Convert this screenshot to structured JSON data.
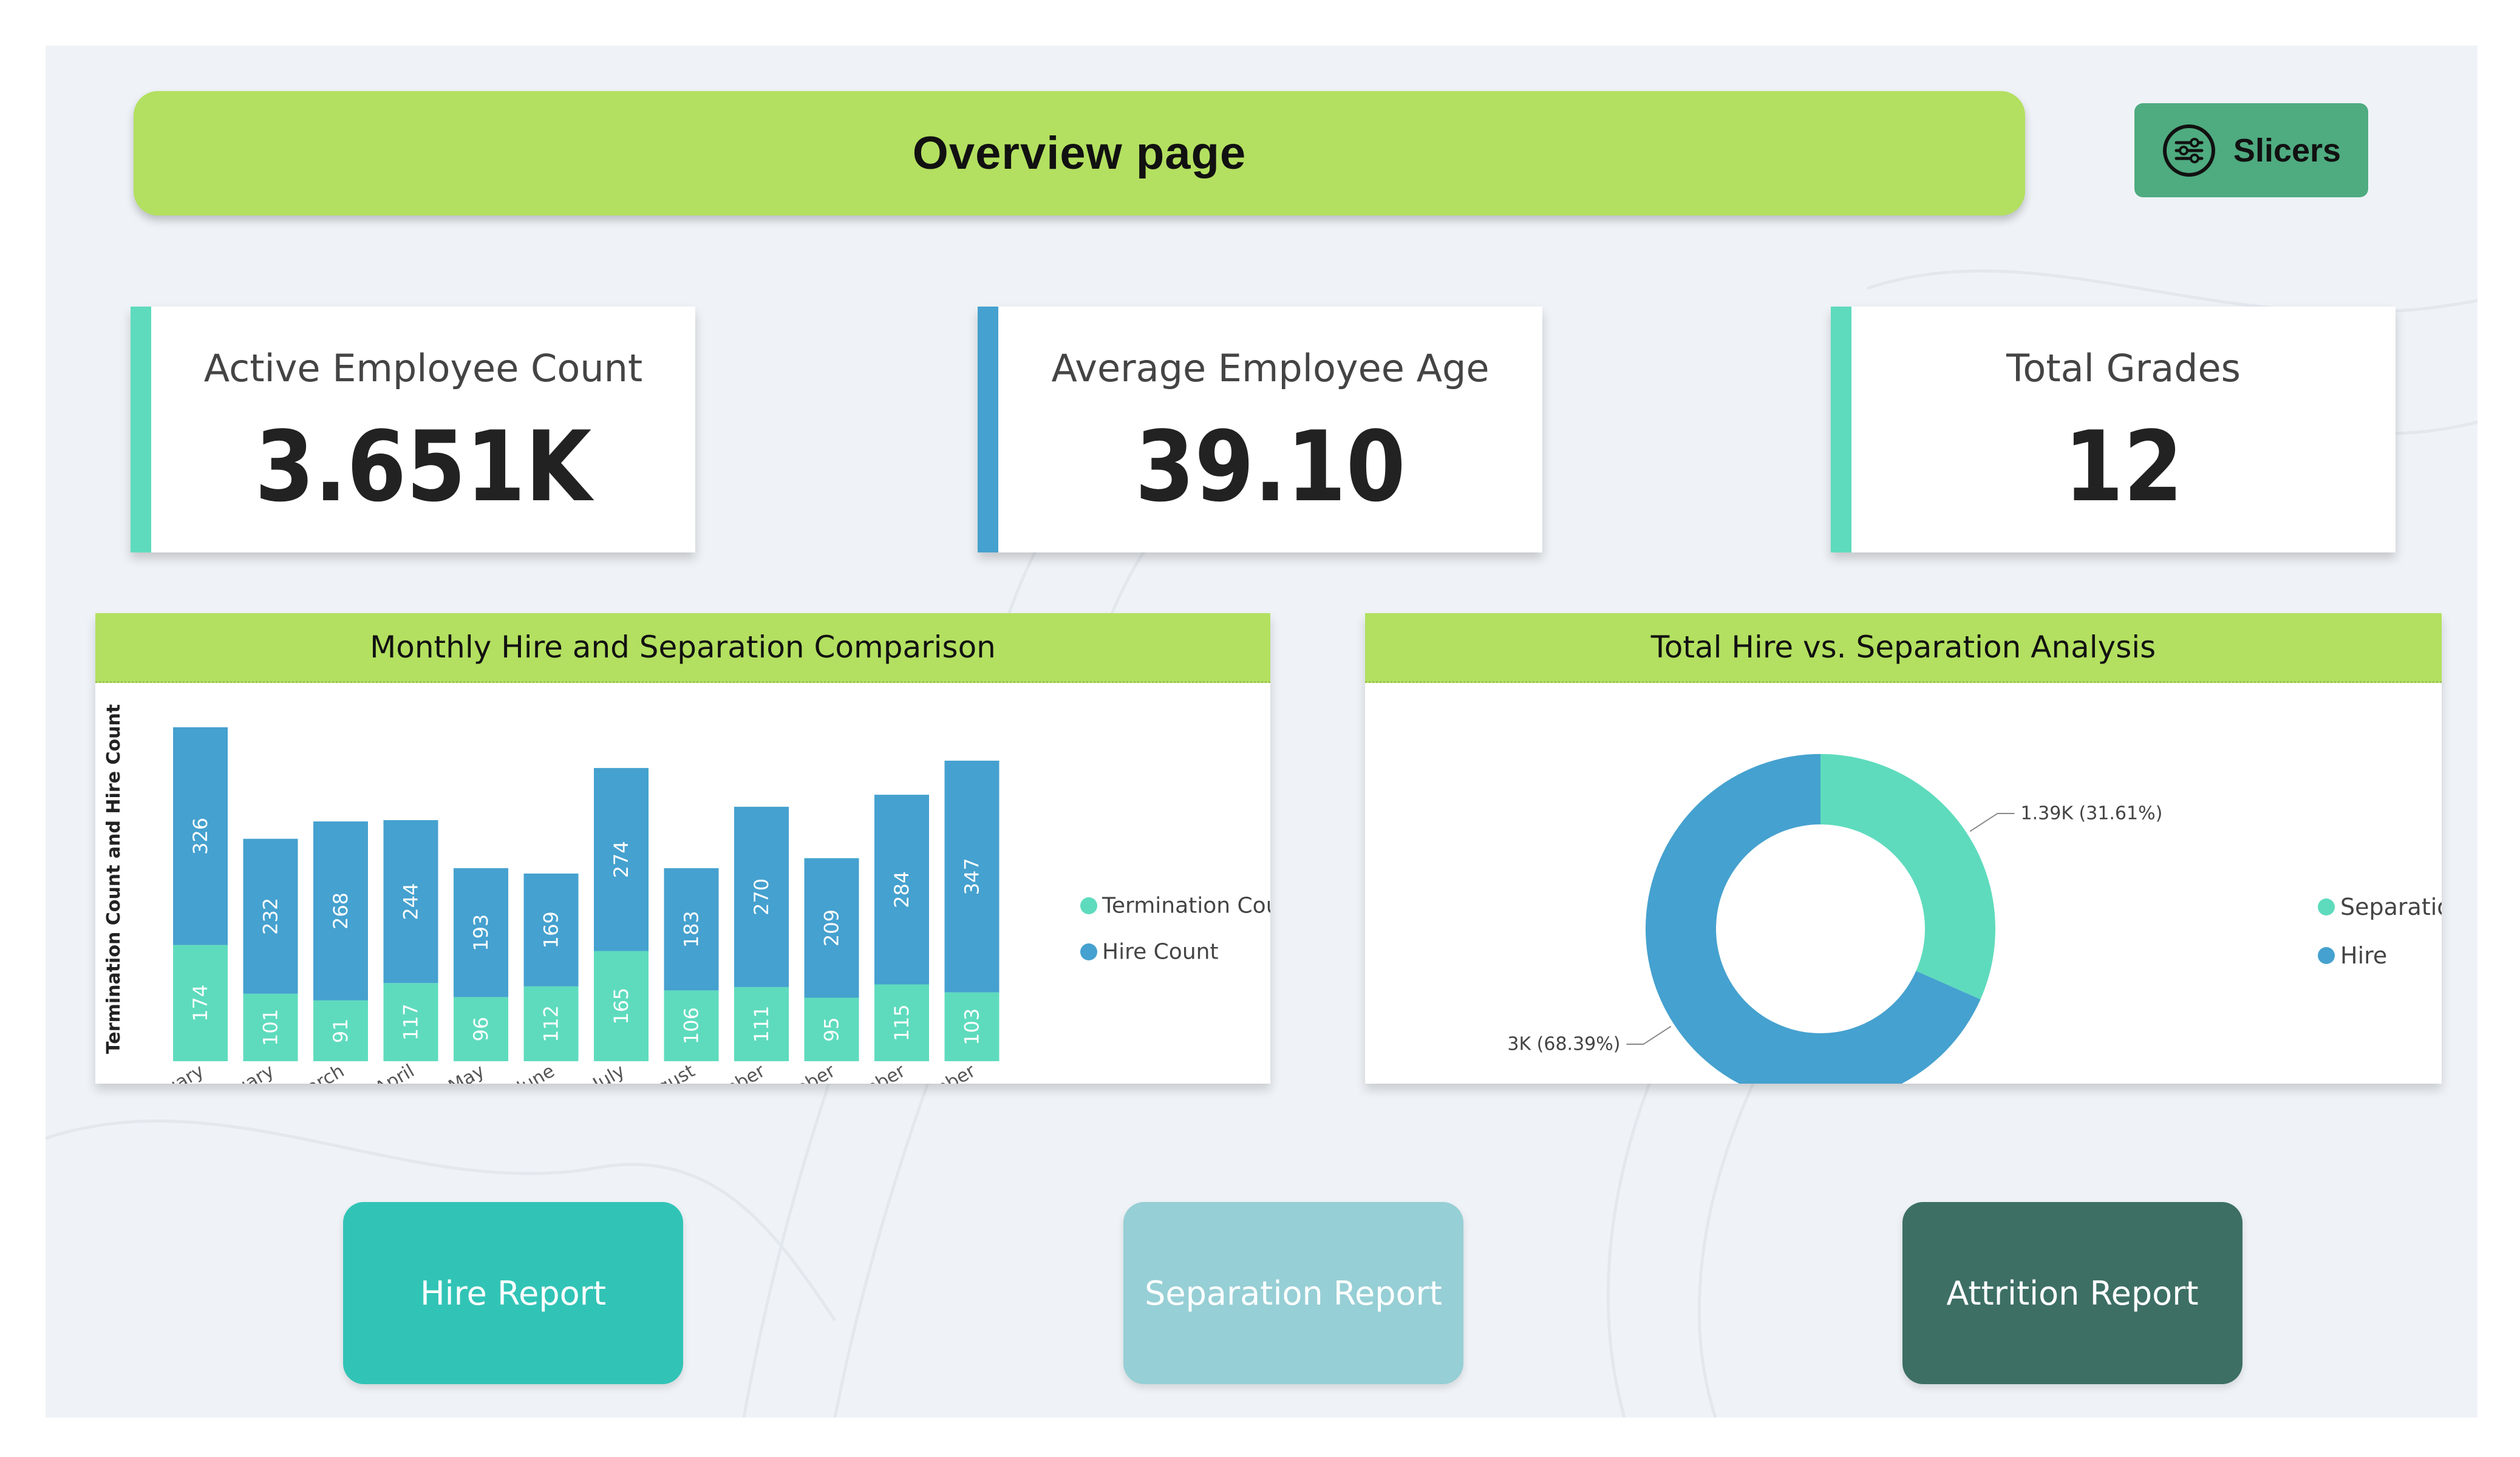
{
  "header": {
    "title": "Overview page"
  },
  "slicers": {
    "label": "Slicers"
  },
  "kpis": [
    {
      "label": "Active Employee Count",
      "value": "3.651K",
      "accent": "#5edbbd"
    },
    {
      "label": "Average Employee Age",
      "value": "39.10",
      "accent": "#45a1cf"
    },
    {
      "label": "Total Grades",
      "value": "12",
      "accent": "#5edbbd"
    }
  ],
  "bar_panel": {
    "title": "Monthly Hire and Separation Comparison"
  },
  "donut_panel": {
    "title": "Total Hire vs. Separation Analysis"
  },
  "colors": {
    "termination": "#5edbbd",
    "hire": "#45a1cf",
    "banner": "#b3e060"
  },
  "nav": {
    "hire": "Hire Report",
    "separation": "Separation Report",
    "attrition": "Attrition Report"
  },
  "chart_data": [
    {
      "type": "bar",
      "stacked": true,
      "title": "Monthly Hire and Separation Comparison",
      "ylabel": "Termination Count and Hire Count",
      "categories": [
        "January",
        "February",
        "March",
        "April",
        "May",
        "June",
        "July",
        "August",
        "September",
        "October",
        "November",
        "December"
      ],
      "series": [
        {
          "name": "Termination Count",
          "color": "#5edbbd",
          "values": [
            174,
            101,
            91,
            117,
            96,
            112,
            165,
            106,
            111,
            95,
            115,
            103
          ]
        },
        {
          "name": "Hire Count",
          "color": "#45a1cf",
          "values": [
            326,
            232,
            268,
            244,
            193,
            169,
            274,
            183,
            270,
            209,
            284,
            347
          ]
        }
      ],
      "ylim": [
        0,
        520
      ],
      "legend": "right",
      "grid": false
    },
    {
      "type": "pie",
      "donut": true,
      "title": "Total Hire vs. Separation Analysis",
      "slices": [
        {
          "name": "Separation",
          "value": 31.61,
          "label": "1.39K (31.61%)",
          "color": "#5edbbd"
        },
        {
          "name": "Hire",
          "value": 68.39,
          "label": "3K (68.39%)",
          "color": "#45a1cf"
        }
      ],
      "legend": "right"
    }
  ]
}
